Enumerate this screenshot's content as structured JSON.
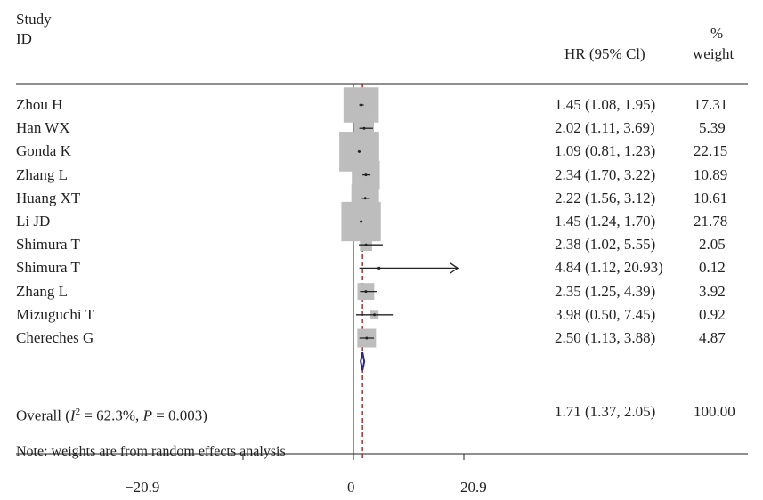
{
  "header": {
    "study_line1": "Study",
    "study_line2": "ID",
    "hr_label": "HR (95% Cl)",
    "weight_line1": "%",
    "weight_line2": "weight"
  },
  "chart_data": {
    "type": "forest",
    "x_ticks": [
      "−20.9",
      "0",
      "20.9"
    ],
    "x_range": [
      -29.5,
      36.5
    ],
    "null_line": 0,
    "overall_line": 1.71,
    "studies": [
      {
        "label": "Zhou H",
        "hr": 1.45,
        "lo": 1.08,
        "hi": 1.95,
        "ci_text": "1.45 (1.08, 1.95)",
        "weight": 17.31,
        "weight_text": "17.31"
      },
      {
        "label": "Han WX",
        "hr": 2.02,
        "lo": 1.11,
        "hi": 3.69,
        "ci_text": "2.02 (1.11, 3.69)",
        "weight": 5.39,
        "weight_text": "5.39"
      },
      {
        "label": "Gonda K",
        "hr": 1.09,
        "lo": 0.81,
        "hi": 1.23,
        "ci_text": "1.09 (0.81, 1.23)",
        "weight": 22.15,
        "weight_text": "22.15"
      },
      {
        "label": "Zhang L",
        "hr": 2.34,
        "lo": 1.7,
        "hi": 3.22,
        "ci_text": "2.34 (1.70, 3.22)",
        "weight": 10.89,
        "weight_text": "10.89"
      },
      {
        "label": "Huang XT",
        "hr": 2.22,
        "lo": 1.56,
        "hi": 3.12,
        "ci_text": "2.22 (1.56, 3.12)",
        "weight": 10.61,
        "weight_text": "10.61"
      },
      {
        "label": "Li JD",
        "hr": 1.45,
        "lo": 1.24,
        "hi": 1.7,
        "ci_text": "1.45 (1.24, 1.70)",
        "weight": 21.78,
        "weight_text": "21.78"
      },
      {
        "label": "Shimura T",
        "hr": 2.38,
        "lo": 1.02,
        "hi": 5.55,
        "ci_text": "2.38 (1.02, 5.55)",
        "weight": 2.05,
        "weight_text": "2.05"
      },
      {
        "label": "Shimura T",
        "hr": 4.84,
        "lo": 1.12,
        "hi": 20.93,
        "ci_text": "4.84 (1.12, 20.93)",
        "weight": 0.12,
        "weight_text": "0.12",
        "arrow": true
      },
      {
        "label": "Zhang L",
        "hr": 2.35,
        "lo": 1.25,
        "hi": 4.39,
        "ci_text": "2.35 (1.25, 4.39)",
        "weight": 3.92,
        "weight_text": "3.92"
      },
      {
        "label": "Mizuguchi T",
        "hr": 3.98,
        "lo": 0.5,
        "hi": 7.45,
        "ci_text": "3.98 (0.50, 7.45)",
        "weight": 0.92,
        "weight_text": "0.92"
      },
      {
        "label": "Chereches G",
        "hr": 2.5,
        "lo": 1.13,
        "hi": 3.88,
        "ci_text": "2.50 (1.13, 3.88)",
        "weight": 4.87,
        "weight_text": "4.87"
      }
    ],
    "overall": {
      "label_prefix": "Overall (",
      "label_i": "I",
      "label_sup": "2",
      "label_mid": " = 62.3%, ",
      "label_p": "P",
      "label_end": " = 0.003)",
      "hr": 1.71,
      "lo": 1.37,
      "hi": 2.05,
      "ci_text": "1.71 (1.37, 2.05)",
      "weight_text": "100.00"
    },
    "note": "Note: weights are from random effects analysis",
    "colors": {
      "box": "#bdbdbd",
      "dash": "#8b1a1a",
      "diamond": "#2b2a7a",
      "line": "#222222"
    }
  }
}
